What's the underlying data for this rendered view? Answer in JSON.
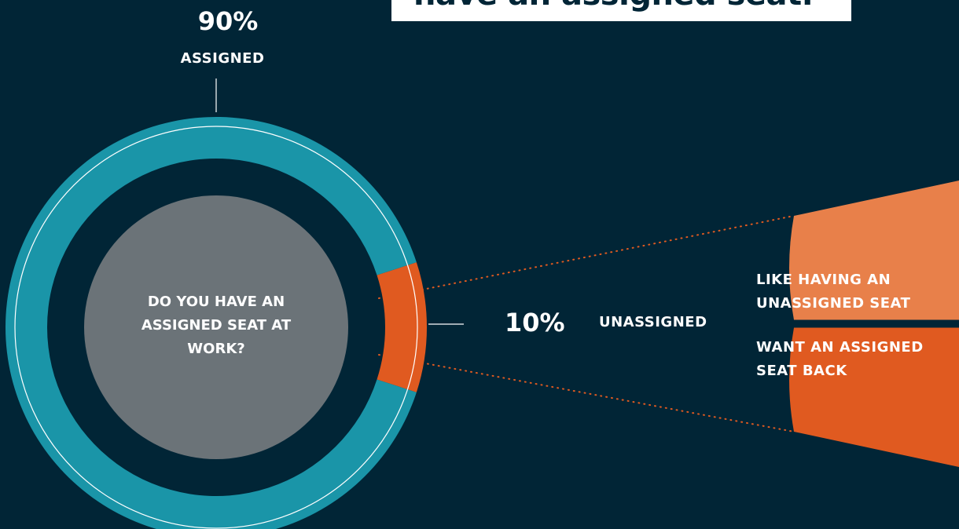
{
  "chart_data": {
    "type": "donut",
    "title": "have an assigned seat.",
    "center_label": "DO YOU HAVE AN ASSIGNED SEAT AT WORK?",
    "categories": [
      "ASSIGNED",
      "UNASSIGNED"
    ],
    "values": [
      90,
      10
    ],
    "value_labels": [
      "90%",
      "10%"
    ],
    "colors": [
      "#1a95a8",
      "#e05a20"
    ],
    "breakdown": {
      "categories": [
        "LIKE HAVING AN UNASSIGNED SEAT",
        "WANT AN ASSIGNED SEAT BACK"
      ],
      "values": [
        5,
        5
      ],
      "colors": [
        "#e8804a",
        "#e05a20"
      ]
    }
  }
}
